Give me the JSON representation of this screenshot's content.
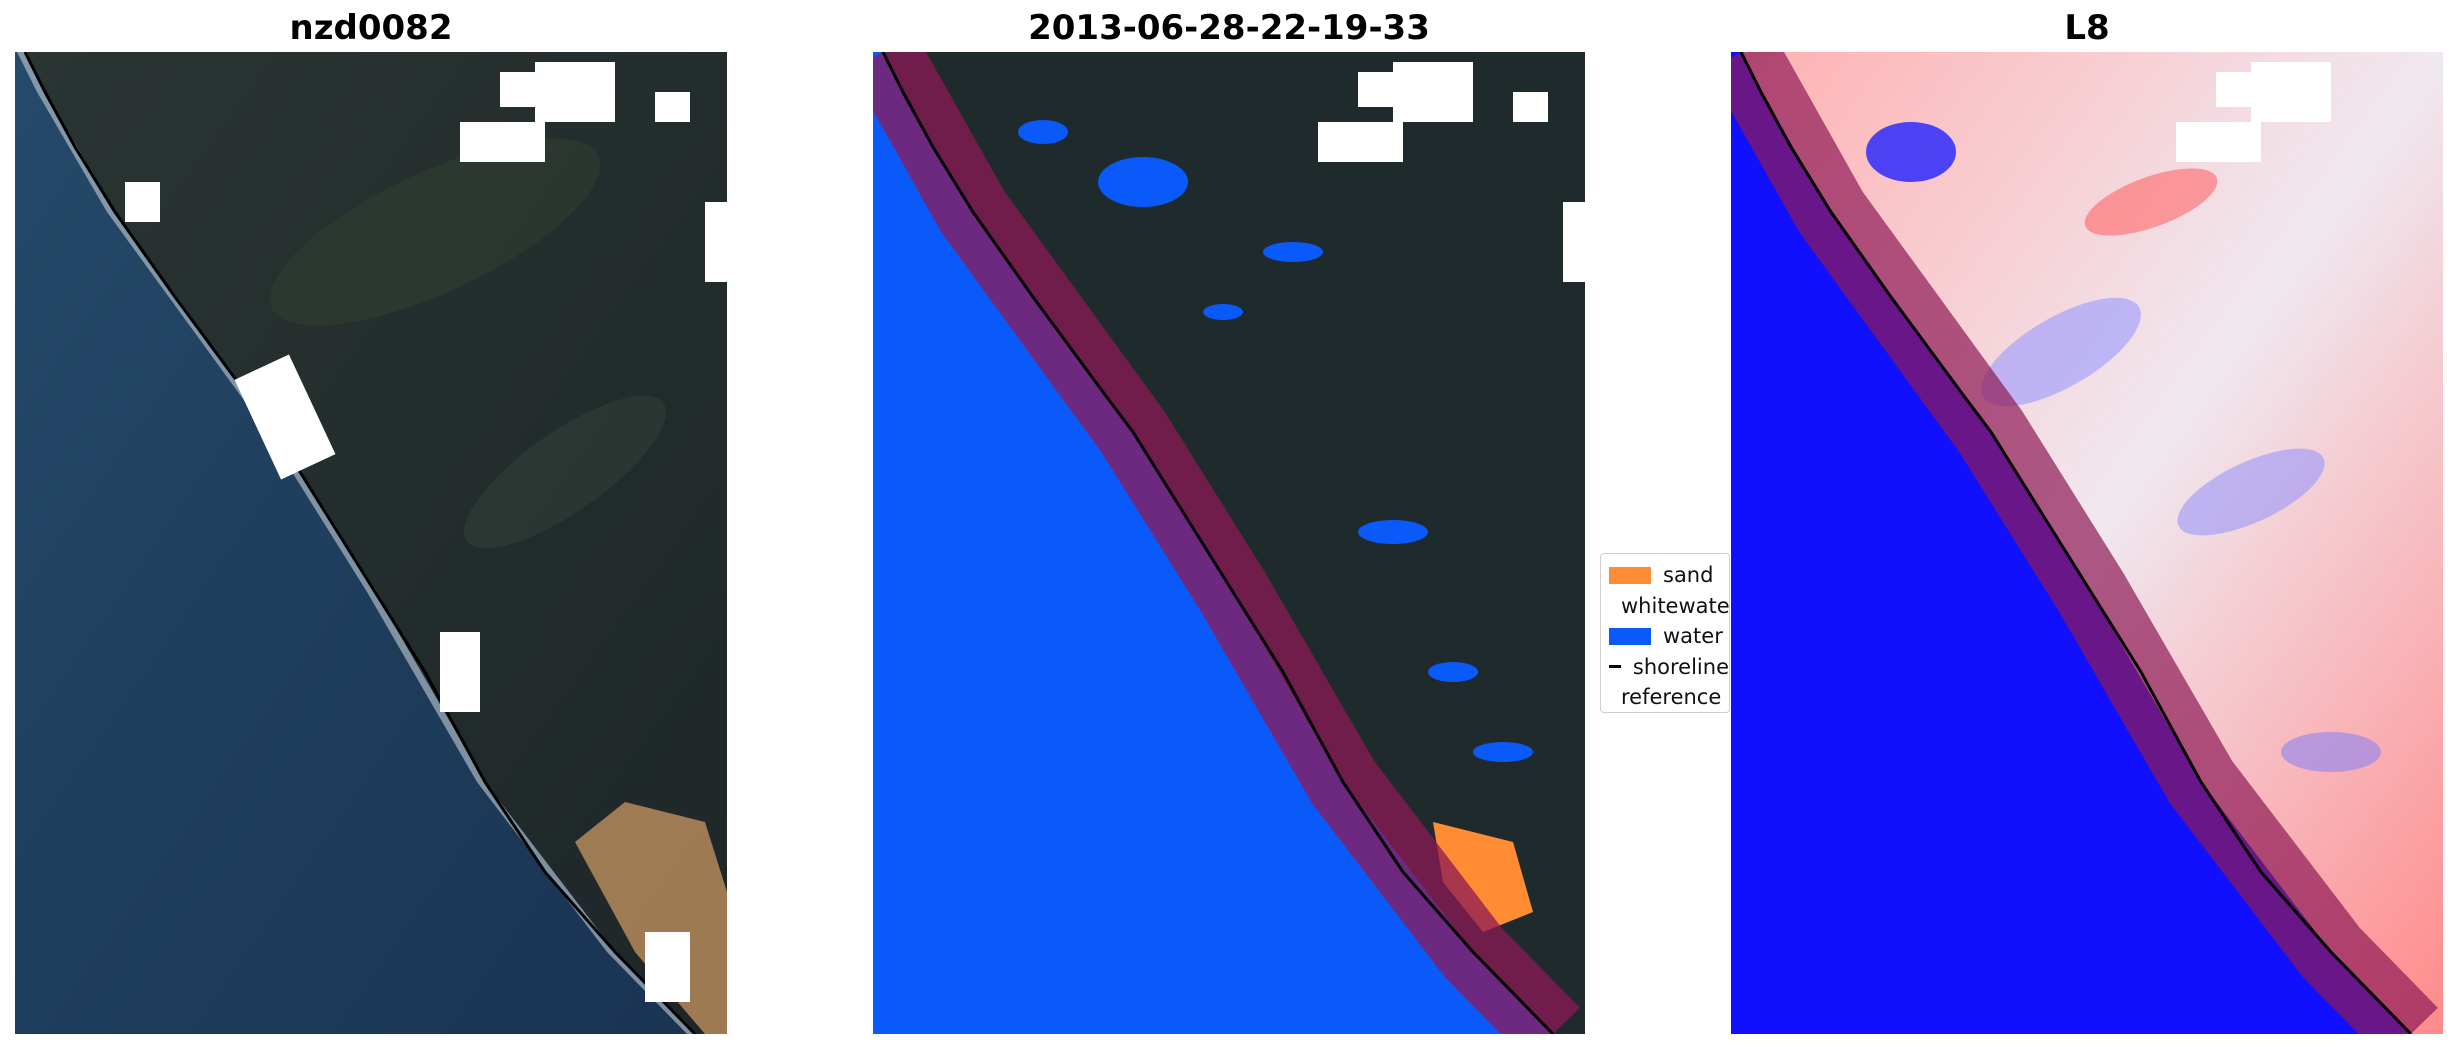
{
  "panels": [
    {
      "title": "nzd0082"
    },
    {
      "title": "2013-06-28-22-19-33"
    },
    {
      "title": "L8"
    }
  ],
  "legend": {
    "items": [
      {
        "label": "sand",
        "color": "#ff8c33",
        "kind": "patch"
      },
      {
        "label": "whitewater",
        "color": "#c8fbfb",
        "kind": "patch"
      },
      {
        "label": "water",
        "color": "#0a5afa",
        "kind": "patch"
      },
      {
        "label": "shoreline",
        "color": "#000000",
        "kind": "line"
      },
      {
        "label": "reference shoreline buffer",
        "color": "#9b2d2d",
        "kind": "patch"
      }
    ]
  },
  "colors": {
    "ocean_rgb": "#1e3a58",
    "land_rgb": "#1f2a2c",
    "water_class": "#0a5afa",
    "buffer": "#8e1a55",
    "index_neg": "#1010ff",
    "index_pos": "#ff6b6b"
  }
}
